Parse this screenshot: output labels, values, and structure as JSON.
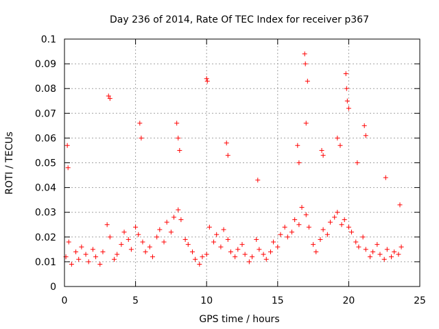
{
  "chart_data": {
    "type": "scatter",
    "title": "Day 236 of 2014, Rate Of TEC Index for receiver p367",
    "xlabel": "GPS time / hours",
    "ylabel": "ROTI / TECUs",
    "xlim": [
      0,
      25
    ],
    "ylim": [
      0,
      0.1
    ],
    "xticks": [
      0,
      5,
      10,
      15,
      20,
      25
    ],
    "xtick_labels": [
      "0",
      "5",
      "10",
      "15",
      "20",
      "25"
    ],
    "yticks": [
      0,
      0.01,
      0.02,
      0.03,
      0.04,
      0.05,
      0.06,
      0.07,
      0.08,
      0.09,
      0.1
    ],
    "ytick_labels": [
      "0",
      "0.01",
      "0.02",
      "0.03",
      "0.04",
      "0.05",
      "0.06",
      "0.07",
      "0.08",
      "0.09",
      "0.1"
    ],
    "grid": true,
    "marker": "+",
    "color": "#ff0000",
    "series": [
      {
        "x": [
          0.1,
          0.3,
          0.5,
          0.8,
          1.0,
          1.2,
          1.5,
          1.7,
          2.0,
          2.2,
          2.5,
          2.7,
          3.0,
          3.2,
          3.5,
          3.7,
          4.0,
          4.2,
          4.5,
          4.7,
          5.0,
          5.2,
          5.5,
          5.7,
          6.0,
          6.2,
          6.5,
          6.7,
          7.0,
          7.2,
          7.5,
          7.7,
          8.0,
          8.2,
          8.5,
          8.7,
          9.0,
          9.2,
          9.5,
          9.7,
          10.0,
          10.2,
          10.5,
          10.7,
          11.0,
          11.2,
          11.5,
          11.7,
          12.0,
          12.2,
          12.5,
          12.7,
          13.0,
          13.2,
          13.5,
          13.7,
          14.0,
          14.2,
          14.5,
          14.7,
          15.0,
          15.2,
          15.5,
          15.7,
          16.0,
          16.2,
          16.5,
          16.7,
          17.0,
          17.2,
          17.5,
          17.7,
          18.0,
          18.2,
          18.5,
          18.7,
          19.0,
          19.2,
          19.5,
          19.7,
          20.0,
          20.2,
          20.5,
          20.7,
          21.0,
          21.2,
          21.5,
          21.7,
          22.0,
          22.2,
          22.5,
          22.7,
          23.0,
          23.2,
          23.5,
          23.7,
          0.2,
          0.25,
          3.1,
          3.2,
          5.3,
          5.4,
          7.9,
          8.0,
          8.1,
          10.0,
          10.05,
          11.4,
          11.5,
          13.6,
          16.4,
          16.5,
          16.9,
          16.95,
          17.0,
          17.1,
          18.1,
          18.2,
          19.2,
          19.4,
          19.8,
          19.85,
          19.9,
          20.0,
          20.6,
          21.1,
          21.2,
          22.6,
          23.6
        ],
        "y": [
          0.012,
          0.018,
          0.009,
          0.014,
          0.011,
          0.016,
          0.013,
          0.01,
          0.015,
          0.012,
          0.009,
          0.014,
          0.025,
          0.02,
          0.011,
          0.013,
          0.017,
          0.022,
          0.019,
          0.015,
          0.024,
          0.021,
          0.018,
          0.014,
          0.016,
          0.012,
          0.02,
          0.023,
          0.018,
          0.026,
          0.022,
          0.028,
          0.031,
          0.027,
          0.019,
          0.017,
          0.014,
          0.011,
          0.009,
          0.012,
          0.013,
          0.024,
          0.018,
          0.021,
          0.016,
          0.023,
          0.019,
          0.014,
          0.012,
          0.015,
          0.017,
          0.013,
          0.01,
          0.012,
          0.019,
          0.015,
          0.013,
          0.011,
          0.014,
          0.018,
          0.016,
          0.021,
          0.024,
          0.02,
          0.022,
          0.027,
          0.025,
          0.032,
          0.029,
          0.024,
          0.017,
          0.014,
          0.019,
          0.023,
          0.021,
          0.026,
          0.028,
          0.03,
          0.025,
          0.027,
          0.024,
          0.022,
          0.018,
          0.016,
          0.02,
          0.015,
          0.012,
          0.014,
          0.017,
          0.013,
          0.011,
          0.015,
          0.012,
          0.014,
          0.013,
          0.016,
          0.057,
          0.048,
          0.077,
          0.076,
          0.066,
          0.06,
          0.066,
          0.06,
          0.055,
          0.084,
          0.083,
          0.058,
          0.053,
          0.043,
          0.057,
          0.05,
          0.094,
          0.09,
          0.066,
          0.083,
          0.055,
          0.053,
          0.06,
          0.057,
          0.086,
          0.08,
          0.075,
          0.072,
          0.05,
          0.065,
          0.061,
          0.044,
          0.033
        ]
      }
    ]
  }
}
